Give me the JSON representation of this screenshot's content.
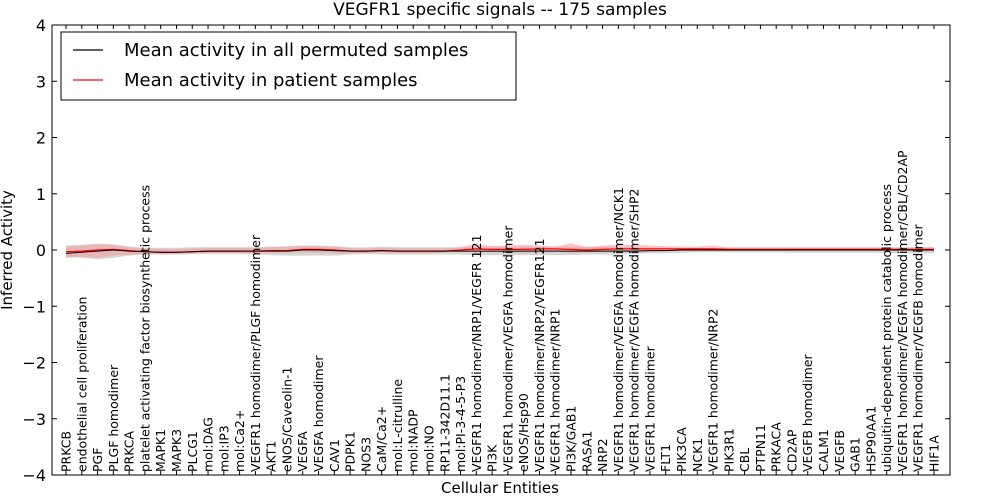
{
  "chart_data": {
    "type": "line",
    "title": "VEGFR1 specific signals -- 175 samples",
    "xlabel": "Cellular Entities",
    "ylabel": "Inferred Activity",
    "ylim": [
      -4,
      4
    ],
    "yticks": [
      "−4",
      "−3",
      "−2",
      "−1",
      "0",
      "1",
      "2",
      "3",
      "4"
    ],
    "grid": false,
    "legend_position": "top-left",
    "categories": [
      "PRKCB",
      "endothelial cell proliferation",
      "PGF",
      "PLGF homodimer",
      "PRKCA",
      "platelet activating factor biosynthetic process",
      "MAPK1",
      "MAPK3",
      "PLCG1",
      "mol:DAG",
      "mol:IP3",
      "mol:Ca2+",
      "VEGFR1 homodimer/PLGF homodimer",
      "AKT1",
      "eNOS/Caveolin-1",
      "VEGFA",
      "VEGFA homodimer",
      "CAV1",
      "PDPK1",
      "NOS3",
      "CaM/Ca2+",
      "mol:L-citrulline",
      "mol:NADP",
      "mol:NO",
      "RP11-342D11.1",
      "mol:PI-3-4-5-P3",
      "VEGFR1 homodimer/NRP1/VEGFR 121",
      "PI3K",
      "VEGFR1 homodimer/VEGFA homodimer",
      "eNOS/Hsp90",
      "VEGFR1 homodimer/NRP2/VEGFR121",
      "VEGFR1 homodimer/NRP1",
      "PI3K/GAB1",
      "RASA1",
      "NRP2",
      "VEGFR1 homodimer/VEGFA homodimer/NCK1",
      "VEGFR1 homodimer/VEGFA homodimer/SHP2",
      "VEGFR1 homodimer",
      "FLT1",
      "PIK3CA",
      "NCK1",
      "VEGFR1 homodimer/NRP2",
      "PIK3R1",
      "CBL",
      "PTPN11",
      "PRKACA",
      "CD2AP",
      "VEGFB homodimer",
      "CALM1",
      "VEGFB",
      "GAB1",
      "HSP90AA1",
      "ubiquitin-dependent protein catabolic process",
      "VEGFR1 homodimer/VEGFA homodimer/CBL/CD2AP",
      "VEGFR1 homodimer/VEGFB homodimer",
      "HIF1A"
    ],
    "series": [
      {
        "name": "Mean activity in all permuted samples",
        "color": "#000000",
        "band_color": "#c8c8c8",
        "values": [
          -0.06,
          -0.04,
          -0.02,
          0.0,
          -0.02,
          -0.03,
          -0.04,
          -0.04,
          -0.03,
          -0.02,
          -0.02,
          -0.02,
          -0.02,
          -0.02,
          -0.02,
          0.0,
          0.0,
          -0.01,
          -0.02,
          -0.02,
          -0.01,
          -0.02,
          -0.02,
          -0.02,
          -0.02,
          -0.02,
          -0.02,
          -0.02,
          -0.02,
          -0.02,
          -0.02,
          -0.02,
          -0.02,
          -0.02,
          -0.02,
          -0.02,
          -0.02,
          -0.01,
          -0.01,
          0.0,
          0.0,
          0.0,
          0.0,
          0.0,
          0.0,
          0.0,
          0.0,
          0.0,
          0.0,
          0.0,
          0.0,
          0.0,
          0.0,
          0.0,
          0.0,
          0.0
        ],
        "band_low": [
          -0.12,
          -0.14,
          -0.16,
          -0.14,
          -0.1,
          -0.08,
          -0.08,
          -0.08,
          -0.07,
          -0.07,
          -0.07,
          -0.07,
          -0.08,
          -0.09,
          -0.1,
          -0.1,
          -0.1,
          -0.1,
          -0.08,
          -0.07,
          -0.08,
          -0.08,
          -0.08,
          -0.08,
          -0.08,
          -0.08,
          -0.09,
          -0.09,
          -0.09,
          -0.09,
          -0.09,
          -0.09,
          -0.09,
          -0.08,
          -0.08,
          -0.08,
          -0.07,
          -0.06,
          -0.06,
          -0.05,
          -0.04,
          -0.04,
          -0.04,
          -0.04,
          -0.04,
          -0.04,
          -0.05,
          -0.05,
          -0.05,
          -0.05,
          -0.05,
          -0.05,
          -0.05,
          -0.06,
          -0.06,
          -0.06
        ],
        "band_high": [
          0.08,
          0.09,
          0.11,
          0.1,
          0.06,
          0.04,
          0.04,
          0.04,
          0.05,
          0.05,
          0.05,
          0.05,
          0.05,
          0.06,
          0.07,
          0.08,
          0.08,
          0.07,
          0.05,
          0.05,
          0.06,
          0.05,
          0.05,
          0.05,
          0.05,
          0.05,
          0.06,
          0.06,
          0.06,
          0.06,
          0.06,
          0.06,
          0.06,
          0.06,
          0.06,
          0.05,
          0.05,
          0.04,
          0.04,
          0.04,
          0.04,
          0.04,
          0.04,
          0.04,
          0.04,
          0.04,
          0.04,
          0.04,
          0.04,
          0.04,
          0.04,
          0.04,
          0.04,
          0.04,
          0.05,
          0.05
        ]
      },
      {
        "name": "Mean activity in patient samples",
        "color": "#ff0000",
        "band_color": "#f4a0a0",
        "values": [
          -0.03,
          -0.02,
          0.0,
          0.01,
          -0.01,
          -0.03,
          -0.04,
          -0.04,
          -0.03,
          -0.02,
          -0.02,
          -0.02,
          -0.02,
          -0.01,
          -0.01,
          0.01,
          0.01,
          0.0,
          -0.02,
          -0.02,
          -0.01,
          -0.02,
          -0.02,
          -0.02,
          -0.02,
          0.0,
          0.02,
          0.01,
          0.01,
          0.01,
          0.02,
          0.02,
          0.01,
          0.0,
          0.01,
          0.02,
          0.02,
          0.02,
          0.02,
          0.02,
          0.02,
          0.02,
          0.01,
          0.01,
          0.01,
          0.01,
          0.01,
          0.01,
          0.01,
          0.01,
          0.01,
          0.01,
          0.01,
          0.01,
          0.01,
          0.01
        ],
        "band_low": [
          -0.14,
          -0.12,
          -0.14,
          -0.1,
          -0.08,
          -0.07,
          -0.08,
          -0.08,
          -0.07,
          -0.06,
          -0.06,
          -0.06,
          -0.07,
          -0.05,
          -0.05,
          -0.04,
          -0.05,
          -0.06,
          -0.06,
          -0.06,
          -0.05,
          -0.06,
          -0.06,
          -0.06,
          -0.04,
          -0.02,
          -0.04,
          -0.04,
          -0.05,
          -0.05,
          -0.03,
          -0.02,
          -0.06,
          -0.04,
          -0.03,
          -0.03,
          -0.03,
          -0.03,
          -0.02,
          -0.02,
          -0.02,
          -0.02,
          -0.02,
          -0.02,
          -0.02,
          -0.02,
          -0.02,
          -0.02,
          -0.02,
          -0.02,
          -0.02,
          -0.02,
          -0.02,
          -0.02,
          -0.02,
          -0.02
        ],
        "band_high": [
          0.06,
          0.08,
          0.1,
          0.09,
          0.05,
          0.03,
          0.02,
          0.02,
          0.03,
          0.04,
          0.04,
          0.04,
          0.04,
          0.05,
          0.06,
          0.07,
          0.07,
          0.06,
          0.03,
          0.03,
          0.04,
          0.03,
          0.03,
          0.03,
          0.03,
          0.05,
          0.11,
          0.07,
          0.08,
          0.09,
          0.08,
          0.06,
          0.12,
          0.05,
          0.08,
          0.09,
          0.09,
          0.08,
          0.07,
          0.06,
          0.06,
          0.08,
          0.05,
          0.05,
          0.05,
          0.05,
          0.05,
          0.05,
          0.05,
          0.05,
          0.05,
          0.05,
          0.05,
          0.05,
          0.05,
          0.05
        ]
      }
    ]
  }
}
